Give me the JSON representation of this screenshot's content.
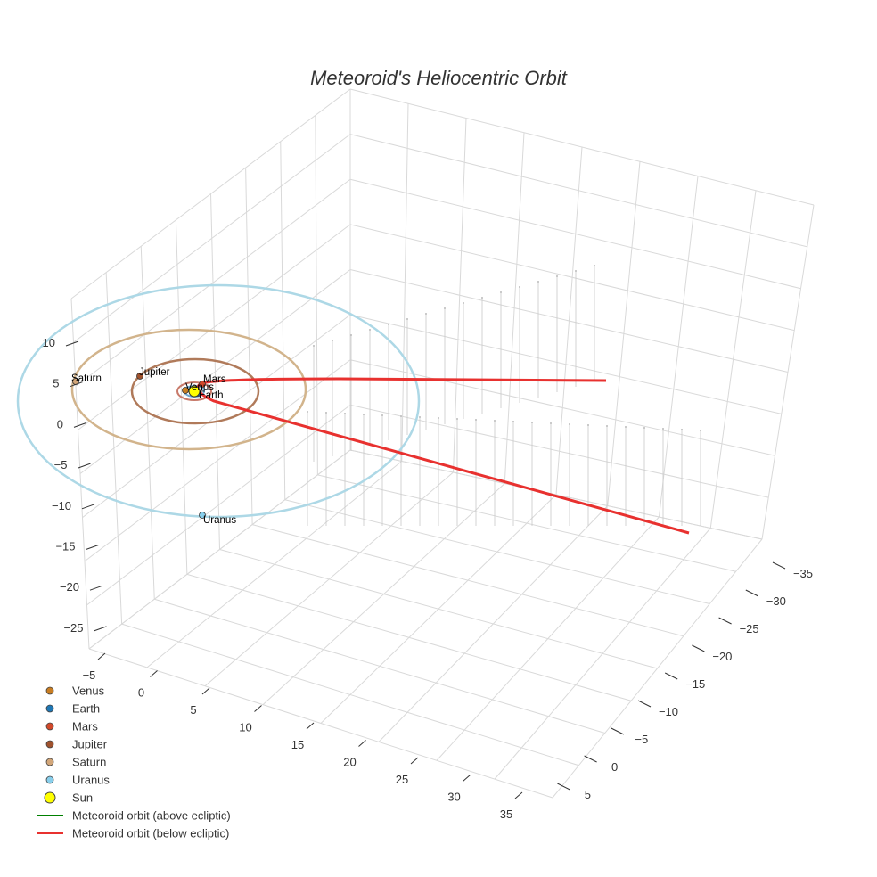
{
  "chart_data": {
    "type": "scatter3d",
    "title": "Meteoroid's Heliocentric Orbit",
    "axes": {
      "x": {
        "ticks": [
          -5,
          0,
          5,
          10,
          15,
          20,
          25,
          30,
          35
        ]
      },
      "y": {
        "ticks": [
          -35,
          -30,
          -25,
          -20,
          -15,
          -10,
          -5,
          0,
          5
        ]
      },
      "z": {
        "ticks": [
          10,
          5,
          0,
          -5,
          -10,
          -15,
          -20,
          -25
        ]
      }
    },
    "planets": [
      {
        "name": "Venus",
        "color": "#c87d22"
      },
      {
        "name": "Earth",
        "color": "#1f77b4"
      },
      {
        "name": "Mars",
        "color": "#d2492a"
      },
      {
        "name": "Jupiter",
        "color": "#a0522d"
      },
      {
        "name": "Saturn",
        "color": "#d2a679"
      },
      {
        "name": "Uranus",
        "color": "#87ceeb"
      }
    ],
    "sun": {
      "name": "Sun",
      "color": "#ffff00"
    },
    "orbit_colors": {
      "mars": "#c87a6a",
      "jupiter": "#b07a5a",
      "saturn": "#d2b48c",
      "uranus": "#add8e6"
    },
    "meteoroid": {
      "above_label": "Meteoroid orbit (above ecliptic)",
      "above_color": "#008000",
      "below_label": "Meteoroid orbit (below ecliptic)",
      "below_color": "#e8312f"
    },
    "legend": [
      {
        "label": "Venus",
        "kind": "dot",
        "color": "#c87d22"
      },
      {
        "label": "Earth",
        "kind": "dot",
        "color": "#1f77b4"
      },
      {
        "label": "Mars",
        "kind": "dot",
        "color": "#d2492a"
      },
      {
        "label": "Jupiter",
        "kind": "dot",
        "color": "#a0522d"
      },
      {
        "label": "Saturn",
        "kind": "dot",
        "color": "#d2a679"
      },
      {
        "label": "Uranus",
        "kind": "dot",
        "color": "#87ceeb"
      },
      {
        "label": "Sun",
        "kind": "sun",
        "color": "#ffff00"
      },
      {
        "label": "Meteoroid orbit (above ecliptic)",
        "kind": "line",
        "color": "#008000"
      },
      {
        "label": "Meteoroid orbit (below ecliptic)",
        "kind": "line",
        "color": "#e8312f"
      }
    ]
  }
}
